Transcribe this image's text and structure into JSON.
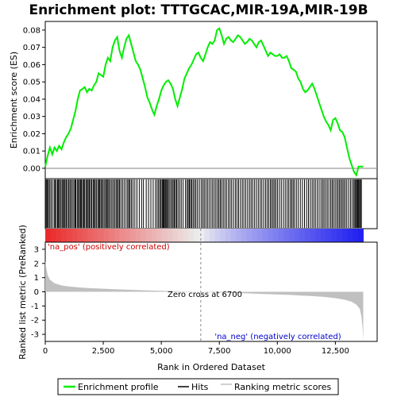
{
  "chart_data": {
    "type": "line",
    "title": "Enrichment plot: TTTGCAC,MIR-19A,MIR-19B",
    "top_panel": {
      "ylabel": "Enrichment score (ES)",
      "ylim": [
        -0.006,
        0.085
      ],
      "yticks": [
        "0.00",
        "0.01",
        "0.02",
        "0.03",
        "0.04",
        "0.05",
        "0.06",
        "0.07",
        "0.08"
      ],
      "series": [
        {
          "name": "Enrichment profile",
          "color": "#00ee00",
          "x": [
            0,
            100,
            200,
            300,
            400,
            500,
            600,
            700,
            800,
            900,
            1000,
            1100,
            1200,
            1300,
            1400,
            1500,
            1600,
            1700,
            1800,
            1900,
            2000,
            2100,
            2200,
            2300,
            2400,
            2500,
            2600,
            2700,
            2800,
            2900,
            3000,
            3100,
            3200,
            3300,
            3400,
            3500,
            3600,
            3700,
            3800,
            3900,
            4000,
            4100,
            4200,
            4300,
            4400,
            4500,
            4600,
            4700,
            4800,
            4900,
            5000,
            5100,
            5200,
            5300,
            5400,
            5500,
            5600,
            5700,
            5800,
            5900,
            6000,
            6100,
            6200,
            6300,
            6400,
            6500,
            6600,
            6700,
            6800,
            6900,
            7000,
            7100,
            7200,
            7300,
            7400,
            7500,
            7600,
            7700,
            7800,
            7900,
            8000,
            8100,
            8200,
            8300,
            8400,
            8500,
            8600,
            8700,
            8800,
            8900,
            9000,
            9100,
            9200,
            9300,
            9400,
            9500,
            9600,
            9700,
            9800,
            9900,
            10000,
            10100,
            10200,
            10300,
            10400,
            10500,
            10600,
            10700,
            10800,
            10900,
            11000,
            11100,
            11200,
            11300,
            11400,
            11500,
            11600,
            11700,
            11800,
            11900,
            12000,
            12100,
            12200,
            12300,
            12400,
            12500,
            12600,
            12700,
            12800,
            12900,
            13000,
            13100,
            13200,
            13300,
            13400,
            13500,
            13600,
            13700
          ],
          "y": [
            0.001,
            0.007,
            0.012,
            0.008,
            0.012,
            0.01,
            0.013,
            0.011,
            0.015,
            0.018,
            0.02,
            0.023,
            0.028,
            0.033,
            0.04,
            0.045,
            0.046,
            0.047,
            0.044,
            0.046,
            0.045,
            0.048,
            0.05,
            0.055,
            0.054,
            0.053,
            0.06,
            0.064,
            0.062,
            0.07,
            0.074,
            0.076,
            0.068,
            0.064,
            0.07,
            0.075,
            0.077,
            0.072,
            0.067,
            0.062,
            0.06,
            0.057,
            0.052,
            0.047,
            0.041,
            0.038,
            0.034,
            0.031,
            0.036,
            0.04,
            0.045,
            0.048,
            0.05,
            0.051,
            0.049,
            0.046,
            0.04,
            0.036,
            0.041,
            0.046,
            0.052,
            0.055,
            0.058,
            0.06,
            0.063,
            0.066,
            0.067,
            0.064,
            0.062,
            0.066,
            0.07,
            0.073,
            0.072,
            0.074,
            0.08,
            0.081,
            0.077,
            0.072,
            0.075,
            0.076,
            0.074,
            0.073,
            0.075,
            0.077,
            0.076,
            0.074,
            0.072,
            0.073,
            0.075,
            0.074,
            0.072,
            0.07,
            0.073,
            0.074,
            0.071,
            0.068,
            0.065,
            0.067,
            0.066,
            0.065,
            0.065,
            0.066,
            0.064,
            0.064,
            0.065,
            0.062,
            0.058,
            0.057,
            0.056,
            0.052,
            0.05,
            0.046,
            0.044,
            0.045,
            0.047,
            0.049,
            0.046,
            0.042,
            0.038,
            0.034,
            0.03,
            0.027,
            0.025,
            0.022,
            0.028,
            0.029,
            0.026,
            0.022,
            0.021,
            0.018,
            0.012,
            0.006,
            0.002,
            -0.002,
            -0.004,
            0.001,
            0.001,
            0.001
          ]
        }
      ]
    },
    "hits_panel": {
      "legend_name": "Hits",
      "hit_ranks": [
        10,
        45,
        90,
        130,
        180,
        240,
        300,
        380,
        420,
        470,
        530,
        570,
        610,
        660,
        720,
        760,
        810,
        850,
        900,
        950,
        1010,
        1060,
        1110,
        1170,
        1230,
        1280,
        1320,
        1380,
        1430,
        1470,
        1520,
        1560,
        1610,
        1660,
        1700,
        1760,
        1810,
        1850,
        1900,
        1950,
        2000,
        2060,
        2100,
        2150,
        2200,
        2260,
        2310,
        2350,
        2400,
        2450,
        2500,
        2560,
        2610,
        2660,
        2700,
        2750,
        2810,
        2870,
        2930,
        2990,
        3050,
        3100,
        3150,
        3200,
        3260,
        3330,
        3400,
        3480,
        3550,
        3600,
        3650,
        3710,
        3780,
        3860,
        3950,
        4050,
        4150,
        4230,
        4350,
        4450,
        4550,
        4650,
        4750,
        4820,
        4880,
        4940,
        4990,
        5040,
        5080,
        5120,
        5160,
        5200,
        5240,
        5290,
        5340,
        5400,
        5460,
        5510,
        5560,
        5610,
        5660,
        5720,
        5790,
        5860,
        5940,
        6040,
        6110,
        6160,
        6210,
        6260,
        6310,
        6370,
        6430,
        6490,
        6560,
        6640,
        6720,
        6790,
        6850,
        6920,
        6990,
        7060,
        7140,
        7210,
        7280,
        7350,
        7420,
        7480,
        7540,
        7600,
        7670,
        7740,
        7810,
        7890,
        7960,
        8030,
        8110,
        8190,
        8260,
        8330,
        8410,
        8490,
        8560,
        8640,
        8720,
        8800,
        8870,
        8940,
        9020,
        9100,
        9180,
        9260,
        9330,
        9410,
        9490,
        9560,
        9630,
        9700,
        9760,
        9820,
        9880,
        9940,
        10010,
        10090,
        10170,
        10260,
        10340,
        10420,
        10490,
        10560,
        10620,
        10680,
        10740,
        10820,
        10900,
        10990,
        11080,
        11170,
        11260,
        11340,
        11420,
        11500,
        11570,
        11640,
        11720,
        11800,
        11880,
        11950,
        12010,
        12080,
        12150,
        12220,
        12300,
        12360,
        12420,
        12490,
        12560,
        12620,
        12680,
        12740,
        12800,
        12860,
        12920,
        12990,
        13070,
        13150,
        13220,
        13290,
        13340,
        13380,
        13420,
        13460,
        13500,
        13540,
        13580,
        13620
      ]
    },
    "rank_panel": {
      "xlabel": "Rank in Ordered Dataset",
      "ylabel": "Ranked list metric (PreRanked)",
      "ylim": [
        -3.5,
        3.5
      ],
      "yticks": [
        "3",
        "2",
        "1",
        "0",
        "-1",
        "-2",
        "-3"
      ],
      "xticks": [
        "0",
        "2,500",
        "5,000",
        "7,500",
        "10,000",
        "12,500"
      ],
      "xlim": [
        0,
        14300
      ],
      "max_rank": 13700,
      "zero_cross": 6700,
      "zero_cross_label": "Zero cross at 6700",
      "pos_label": "'na_pos' (positively correlated)",
      "neg_label": "'na_neg' (negatively correlated)",
      "metric_x": [
        0,
        50,
        100,
        200,
        400,
        700,
        1000,
        1500,
        2000,
        3000,
        4000,
        5000,
        6000,
        6700,
        7500,
        8500,
        9500,
        10500,
        11500,
        12000,
        12500,
        12900,
        13200,
        13400,
        13550,
        13620,
        13670,
        13700
      ],
      "metric_y": [
        2.2,
        1.6,
        1.2,
        0.85,
        0.6,
        0.45,
        0.38,
        0.3,
        0.25,
        0.18,
        0.12,
        0.07,
        0.03,
        0.0,
        -0.05,
        -0.1,
        -0.16,
        -0.22,
        -0.3,
        -0.36,
        -0.45,
        -0.56,
        -0.7,
        -0.9,
        -1.2,
        -1.7,
        -2.5,
        -3.4
      ]
    },
    "legend": [
      {
        "label": "Enrichment profile",
        "color": "#00ee00"
      },
      {
        "label": "Hits",
        "color": "#000000"
      },
      {
        "label": "Ranking metric scores",
        "color": "#c0c0c0"
      }
    ],
    "colors": {
      "enrichment_line": "#00ee00",
      "hit_line": "#000000",
      "metric_fill": "#c0c0c0",
      "pos_text": "#cc0000",
      "neg_text": "#0000cc",
      "zero_line": "#888888"
    }
  }
}
